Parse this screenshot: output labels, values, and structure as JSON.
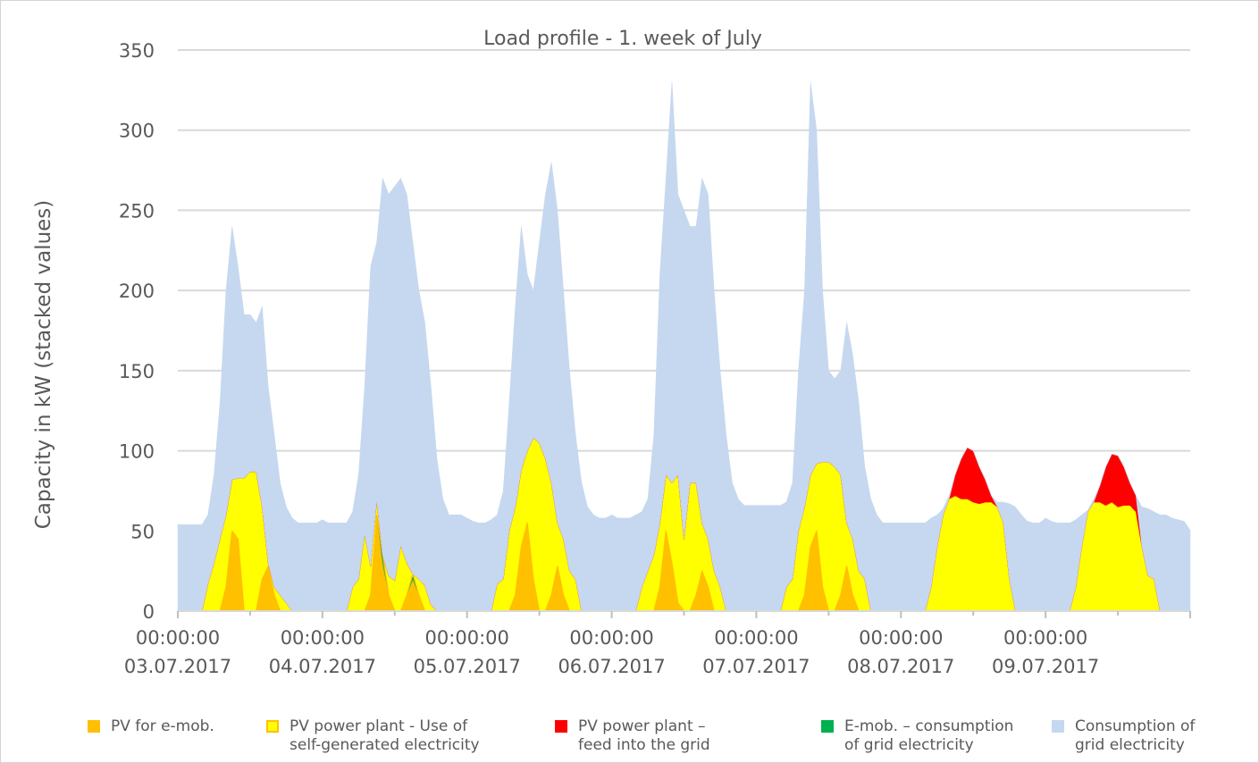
{
  "chart_data": {
    "type": "area",
    "stacked": true,
    "title": "Load profile - 1. week of July",
    "ylabel": "Capacity in kW (stacked values)",
    "xlabel": "",
    "ylim": [
      0,
      350
    ],
    "yticks": [
      0,
      50,
      100,
      150,
      200,
      250,
      300,
      350
    ],
    "grid": true,
    "legend_position": "bottom",
    "x_unit": "hour of week, hourly samples starting 03.07.2017 00:00",
    "xticks": [
      {
        "time": "00:00:00",
        "date": "03.07.2017"
      },
      {
        "time": "00:00:00",
        "date": "04.07.2017"
      },
      {
        "time": "00:00:00",
        "date": "05.07.2017"
      },
      {
        "time": "00:00:00",
        "date": "06.07.2017"
      },
      {
        "time": "00:00:00",
        "date": "07.07.2017"
      },
      {
        "time": "00:00:00",
        "date": "08.07.2017"
      },
      {
        "time": "00:00:00",
        "date": "09.07.2017"
      }
    ],
    "series": [
      {
        "name": "PV for e-mob.",
        "color": "#ffc000",
        "stroke": "#ffc000",
        "values_by_day": [
          [
            0,
            0,
            0,
            0,
            0,
            0,
            0,
            0,
            15,
            50,
            45,
            0,
            0,
            0,
            20,
            28,
            10,
            0,
            0,
            0,
            0,
            0,
            0,
            0
          ],
          [
            0,
            0,
            0,
            0,
            0,
            0,
            0,
            0,
            10,
            60,
            30,
            10,
            0,
            0,
            10,
            20,
            10,
            0,
            0,
            0,
            0,
            0,
            0,
            0
          ],
          [
            0,
            0,
            0,
            0,
            0,
            0,
            0,
            0,
            10,
            40,
            55,
            20,
            0,
            0,
            10,
            28,
            10,
            0,
            0,
            0,
            0,
            0,
            0,
            0
          ],
          [
            0,
            0,
            0,
            0,
            0,
            0,
            0,
            0,
            15,
            50,
            30,
            5,
            0,
            0,
            10,
            25,
            15,
            0,
            0,
            0,
            0,
            0,
            0,
            0
          ],
          [
            0,
            0,
            0,
            0,
            0,
            0,
            0,
            0,
            10,
            40,
            50,
            15,
            0,
            0,
            10,
            28,
            10,
            0,
            0,
            0,
            0,
            0,
            0,
            0
          ],
          [
            0,
            0,
            0,
            0,
            0,
            0,
            0,
            0,
            0,
            0,
            0,
            0,
            0,
            0,
            0,
            0,
            0,
            0,
            0,
            0,
            0,
            0,
            0,
            0
          ],
          [
            0,
            0,
            0,
            0,
            0,
            0,
            0,
            0,
            0,
            0,
            0,
            0,
            0,
            0,
            0,
            0,
            0,
            0,
            0,
            0,
            0,
            0,
            0,
            0
          ]
        ]
      },
      {
        "name": "E-mob. – consumption\nof grid electricity",
        "color": "#00b050",
        "stroke": "#00b050",
        "values_by_day": [
          [
            0,
            0,
            0,
            0,
            0,
            0,
            0,
            0,
            0,
            0,
            0,
            0,
            0,
            0,
            0,
            0,
            0,
            0,
            0,
            0,
            0,
            0,
            0,
            0
          ],
          [
            0,
            0,
            0,
            0,
            0,
            0,
            0,
            0,
            0,
            0,
            5,
            0,
            0,
            0,
            0,
            3,
            0,
            0,
            0,
            0,
            0,
            0,
            0,
            0
          ],
          [
            0,
            0,
            0,
            0,
            0,
            0,
            0,
            0,
            0,
            0,
            0,
            0,
            0,
            0,
            0,
            0,
            0,
            0,
            0,
            0,
            0,
            0,
            0,
            0
          ],
          [
            0,
            0,
            0,
            0,
            0,
            0,
            0,
            0,
            0,
            0,
            0,
            0,
            0,
            0,
            0,
            0,
            0,
            0,
            0,
            0,
            0,
            0,
            0,
            0
          ],
          [
            0,
            0,
            0,
            0,
            0,
            0,
            0,
            0,
            0,
            0,
            0,
            0,
            0,
            0,
            0,
            0,
            0,
            0,
            0,
            0,
            0,
            0,
            0,
            0
          ],
          [
            0,
            0,
            0,
            0,
            0,
            0,
            0,
            0,
            0,
            0,
            0,
            0,
            0,
            0,
            0,
            0,
            0,
            0,
            0,
            0,
            0,
            0,
            0,
            0
          ],
          [
            0,
            0,
            0,
            0,
            0,
            0,
            0,
            0,
            0,
            0,
            0,
            0,
            0,
            0,
            0,
            0,
            0,
            0,
            0,
            0,
            0,
            0,
            0,
            0
          ]
        ]
      },
      {
        "name": "PV power plant - Use of\nself-generated electricity",
        "color": "#ffff00",
        "stroke": "#ffc000",
        "values_by_day": [
          [
            0,
            0,
            0,
            0,
            0,
            17,
            30,
            45,
            45,
            32,
            38,
            83,
            87,
            87,
            45,
            2,
            5,
            10,
            5,
            0,
            0,
            0,
            0,
            0
          ],
          [
            0,
            0,
            0,
            0,
            0,
            15,
            20,
            48,
            18,
            9,
            0,
            12,
            19,
            41,
            20,
            0,
            10,
            16,
            4,
            0,
            0,
            0,
            0,
            0
          ],
          [
            0,
            0,
            0,
            0,
            0,
            17,
            20,
            50,
            55,
            48,
            45,
            88,
            105,
            95,
            70,
            27,
            35,
            25,
            20,
            0,
            0,
            0,
            0,
            0
          ],
          [
            0,
            0,
            0,
            0,
            0,
            15,
            25,
            35,
            40,
            35,
            50,
            80,
            45,
            80,
            70,
            30,
            30,
            25,
            15,
            0,
            0,
            0,
            0,
            0
          ],
          [
            0,
            0,
            0,
            0,
            0,
            15,
            20,
            50,
            55,
            45,
            42,
            78,
            93,
            90,
            75,
            27,
            35,
            25,
            20,
            0,
            0,
            0,
            0,
            0
          ],
          [
            0,
            0,
            0,
            0,
            0,
            15,
            40,
            60,
            70,
            72,
            70,
            70,
            68,
            67,
            68,
            68,
            65,
            55,
            20,
            0,
            0,
            0,
            0,
            0
          ],
          [
            0,
            0,
            0,
            0,
            0,
            15,
            40,
            62,
            68,
            68,
            66,
            68,
            65,
            66,
            66,
            62,
            40,
            22,
            20,
            0,
            0,
            0,
            0,
            0
          ]
        ]
      },
      {
        "name": "PV power plant –\nfeed into the grid",
        "color": "#ff0000",
        "stroke": "#ff0000",
        "values_by_day": [
          [
            0,
            0,
            0,
            0,
            0,
            0,
            0,
            0,
            0,
            0,
            0,
            0,
            0,
            0,
            0,
            0,
            0,
            0,
            0,
            0,
            0,
            0,
            0,
            0
          ],
          [
            0,
            0,
            0,
            0,
            0,
            0,
            0,
            0,
            0,
            0,
            0,
            0,
            0,
            0,
            0,
            0,
            0,
            0,
            0,
            0,
            0,
            0,
            0,
            0
          ],
          [
            0,
            0,
            0,
            0,
            0,
            0,
            0,
            0,
            0,
            0,
            0,
            0,
            0,
            0,
            0,
            0,
            0,
            0,
            0,
            0,
            0,
            0,
            0,
            0
          ],
          [
            0,
            0,
            0,
            0,
            0,
            0,
            0,
            0,
            0,
            0,
            0,
            0,
            0,
            0,
            0,
            0,
            0,
            0,
            0,
            0,
            0,
            0,
            0,
            0
          ],
          [
            0,
            0,
            0,
            0,
            0,
            0,
            0,
            0,
            0,
            0,
            0,
            0,
            0,
            0,
            0,
            0,
            0,
            0,
            0,
            0,
            0,
            0,
            0,
            0
          ],
          [
            0,
            0,
            0,
            0,
            0,
            0,
            0,
            0,
            0,
            13,
            25,
            32,
            32,
            23,
            14,
            4,
            0,
            0,
            0,
            0,
            0,
            0,
            0,
            0
          ],
          [
            0,
            0,
            0,
            0,
            0,
            0,
            0,
            0,
            0,
            10,
            24,
            30,
            32,
            24,
            14,
            10,
            0,
            0,
            0,
            0,
            0,
            0,
            0,
            0
          ]
        ]
      },
      {
        "name": "Consumption of\ngrid electricity",
        "color": "#c5d8ef",
        "stroke": "#c5d8ef",
        "values_by_day": [
          [
            54,
            54,
            54,
            54,
            54,
            43,
            55,
            85,
            140,
            158,
            132,
            102,
            98,
            93,
            125,
            110,
            95,
            70,
            60,
            58,
            55,
            55,
            55,
            55
          ],
          [
            57,
            55,
            55,
            55,
            55,
            47,
            65,
            92,
            187,
            161,
            235,
            238,
            246,
            229,
            230,
            207,
            180,
            164,
            136,
            95,
            70,
            60,
            60,
            60
          ],
          [
            58,
            56,
            55,
            55,
            57,
            43,
            55,
            80,
            125,
            152,
            110,
            92,
            125,
            165,
            200,
            195,
            155,
            125,
            90,
            80,
            65,
            60,
            58,
            58
          ],
          [
            60,
            58,
            58,
            58,
            60,
            47,
            45,
            75,
            155,
            185,
            250,
            175,
            205,
            160,
            160,
            215,
            215,
            175,
            135,
            110,
            80,
            70,
            66,
            66
          ],
          [
            66,
            66,
            66,
            66,
            66,
            53,
            60,
            100,
            135,
            245,
            208,
            107,
            57,
            55,
            65,
            125,
            115,
            105,
            70,
            70,
            60,
            55,
            55,
            55
          ],
          [
            55,
            55,
            55,
            55,
            55,
            43,
            20,
            4,
            2,
            0,
            0,
            0,
            0,
            0,
            0,
            0,
            3,
            13,
            47,
            65,
            60,
            56,
            55,
            55
          ],
          [
            58,
            56,
            55,
            55,
            55,
            42,
            20,
            1,
            2,
            0,
            0,
            0,
            0,
            0,
            0,
            0,
            25,
            42,
            42,
            60,
            60,
            58,
            57,
            56
          ]
        ]
      }
    ],
    "legend_order": [
      0,
      2,
      3,
      1,
      4
    ]
  }
}
